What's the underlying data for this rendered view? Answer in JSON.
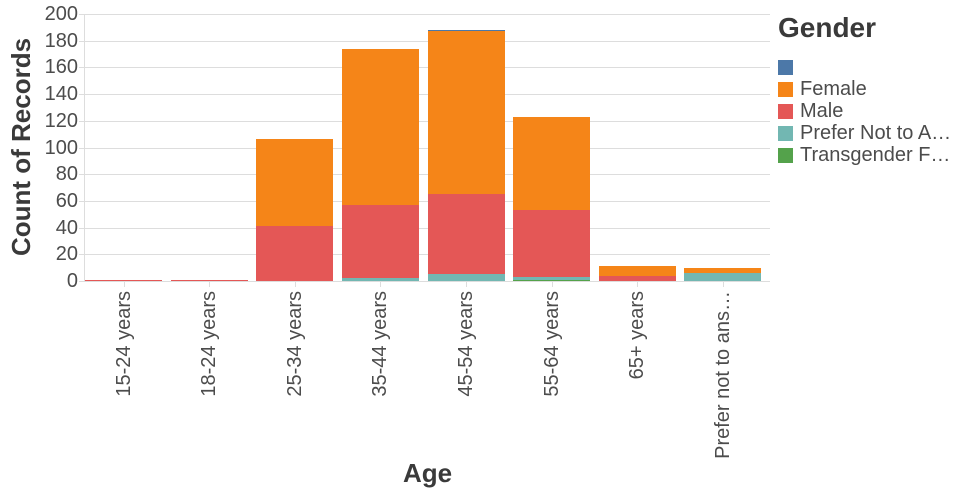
{
  "chart_data": {
    "type": "bar",
    "stacked": true,
    "xlabel": "Age",
    "ylabel": "Count of Records",
    "legend_title": "Gender",
    "ylim": [
      0,
      200
    ],
    "ytick_step": 20,
    "grid": true,
    "legend_position": "right",
    "categories": [
      "15-24 years",
      "18-24 years",
      "25-34 years",
      "35-44 years",
      "45-54 years",
      "55-64 years",
      "65+ years",
      "Prefer not to ans…"
    ],
    "series": [
      {
        "name": "Transgender F…",
        "color": "#54a24b",
        "values": [
          0,
          0,
          0,
          0,
          0,
          1,
          0,
          0
        ]
      },
      {
        "name": "Prefer Not to A…",
        "color": "#72b7b2",
        "values": [
          0,
          0,
          0,
          2,
          5,
          2,
          0,
          6
        ]
      },
      {
        "name": "Male",
        "color": "#e45756",
        "values": [
          1,
          1,
          41,
          55,
          60,
          50,
          4,
          0
        ]
      },
      {
        "name": "Female",
        "color": "#f58518",
        "values": [
          0,
          0,
          65,
          117,
          122,
          70,
          7,
          4
        ]
      },
      {
        "name": "",
        "color": "#4c78a8",
        "values": [
          0,
          0,
          0,
          0,
          1,
          0,
          0,
          0
        ]
      }
    ],
    "legend": [
      {
        "label": "",
        "color": "#4c78a8"
      },
      {
        "label": "Female",
        "color": "#f58518"
      },
      {
        "label": "Male",
        "color": "#e45756"
      },
      {
        "label": "Prefer Not to A…",
        "color": "#72b7b2"
      },
      {
        "label": "Transgender F…",
        "color": "#54a24b"
      }
    ]
  },
  "colors": {
    "background": "#ffffff",
    "grid": "#dddddd",
    "axis_label": "#4c4c4c",
    "axis_title": "#3a3a3a"
  }
}
